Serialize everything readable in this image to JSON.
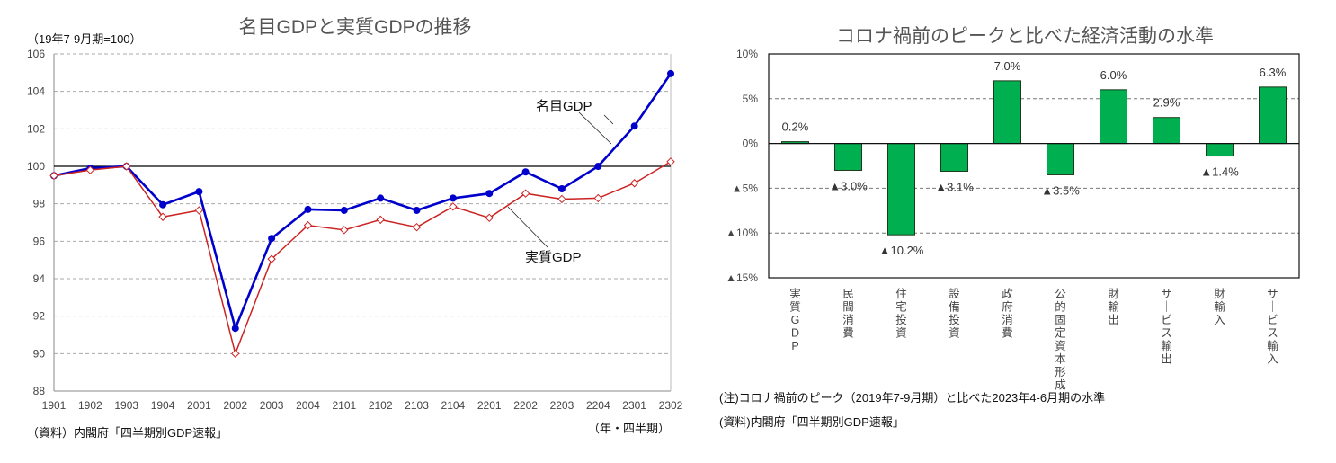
{
  "chart_data": [
    {
      "type": "line",
      "title": "名目GDPと実質GDPの推移",
      "unit_note": "（19年7-9月期=100）",
      "xlabel": "（年・四半期）",
      "ylabel": "",
      "source": "（資料）内閣府「四半期別GDP速報」",
      "ylim": [
        88,
        106
      ],
      "yticks": [
        "88",
        "90",
        "92",
        "94",
        "96",
        "98",
        "100",
        "102",
        "104",
        "106"
      ],
      "grid": true,
      "reference_line": 100,
      "x": [
        "1901",
        "1902",
        "1903",
        "1904",
        "2001",
        "2002",
        "2003",
        "2004",
        "2101",
        "2102",
        "2103",
        "2104",
        "2201",
        "2202",
        "2203",
        "2204",
        "2301",
        "2302"
      ],
      "series": [
        {
          "name": "名目GDP",
          "color": "#0000cc",
          "marker": "filled-circle",
          "values": [
            99.5,
            99.9,
            100.0,
            97.95,
            98.65,
            91.35,
            96.15,
            97.7,
            97.65,
            98.3,
            97.65,
            98.3,
            98.55,
            99.7,
            98.8,
            100.0,
            102.15,
            104.95
          ]
        },
        {
          "name": "実質GDP",
          "color": "#cc2222",
          "marker": "hollow-diamond",
          "values": [
            99.5,
            99.8,
            100.0,
            97.3,
            97.65,
            90.0,
            95.05,
            96.85,
            96.6,
            97.15,
            96.75,
            97.85,
            97.25,
            98.55,
            98.25,
            98.3,
            99.1,
            100.25
          ]
        }
      ],
      "annotations": [
        "名目GDP",
        "実質GDP"
      ]
    },
    {
      "type": "bar",
      "title": "コロナ禍前のピークと比べた経済活動の水準",
      "ylim": [
        -15,
        10
      ],
      "yticks": [
        "10%",
        "5%",
        "0%",
        "▲5%",
        "▲10%",
        "▲15%"
      ],
      "grid": true,
      "bar_color": "#00b050",
      "categories": [
        "実質GDP",
        "民間消費",
        "住宅投資",
        "設備投資",
        "政府消費",
        "公的固定資本形成",
        "財輸出",
        "サービス輸出",
        "財輸入",
        "サービス輸入"
      ],
      "values": [
        0.2,
        -3.0,
        -10.2,
        -3.1,
        7.0,
        -3.5,
        6.0,
        2.9,
        -1.4,
        6.3
      ],
      "data_labels": [
        "0.2%",
        "▲3.0%",
        "▲10.2%",
        "▲3.1%",
        "7.0%",
        "▲3.5%",
        "6.0%",
        "2.9%",
        "▲1.4%",
        "6.3%"
      ],
      "note": "(注)コロナ禍前のピーク（2019年7-9月期）と比べた2023年4-6月期の水準",
      "source": "(資料)内閣府「四半期別GDP速報」"
    }
  ]
}
